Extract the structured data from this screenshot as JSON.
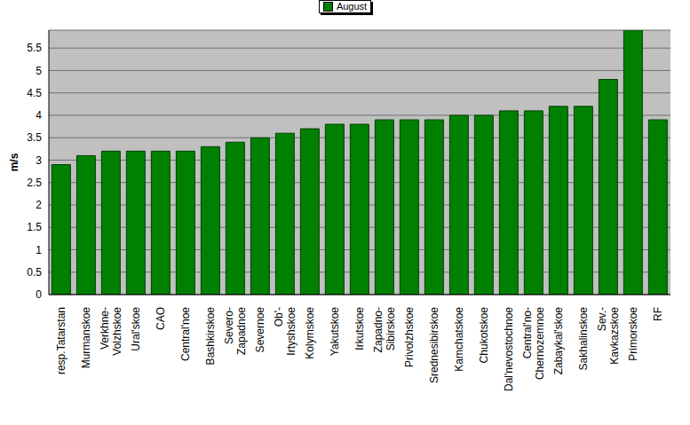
{
  "chart_data": {
    "type": "bar",
    "y_label": "m/s",
    "categories": [
      "resp.Tatarstan",
      "Murmanskoe",
      "Verkhne-Volzhskoe",
      "Ural'skoe",
      "CAO",
      "Central'noe",
      "Bashkirskoe",
      "Severo-Zapadnoe",
      "Severnoe",
      "Ob'-Irtyshskoe",
      "Kolymskoe",
      "Yakutskoe",
      "Irkutskoe",
      "Zapadno-Sibirskoe",
      "Privolzhskoe",
      "Srednesibirskoe",
      "Kamchatskoe",
      "Chukotskoe",
      "Dal'nevostochnoe",
      "Central'no-Chernozemnoe",
      "Zabaykal'skoe",
      "Sakhalinskoe",
      "Sev.-Kavkazskoe",
      "Primorskoe",
      "RF"
    ],
    "series": [
      {
        "name": "August",
        "color": "#008000",
        "values": [
          2.9,
          3.1,
          3.2,
          3.2,
          3.2,
          3.2,
          3.3,
          3.4,
          3.5,
          3.6,
          3.7,
          3.8,
          3.8,
          3.9,
          3.9,
          3.9,
          4.0,
          4.0,
          4.1,
          4.1,
          4.2,
          4.2,
          4.8,
          5.9,
          3.9
        ]
      }
    ],
    "ylim": [
      0,
      5.9
    ],
    "yticks": [
      0,
      0.5,
      1,
      1.5,
      2,
      2.5,
      3,
      3.5,
      4,
      4.5,
      5,
      5.5
    ],
    "grid": true,
    "legend": "top"
  }
}
